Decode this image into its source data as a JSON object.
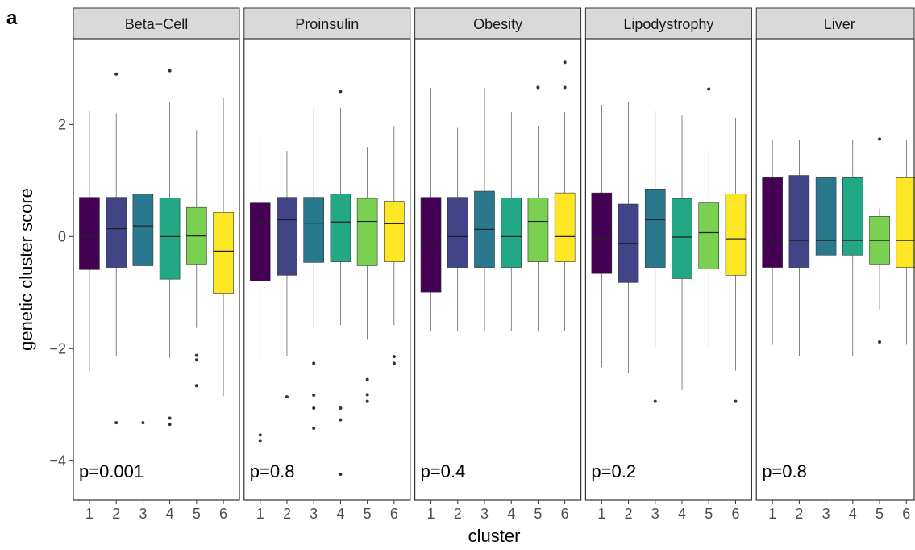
{
  "panel_label": "a",
  "xlabel": "cluster",
  "ylabel": "genetic cluster score",
  "chart_data": [
    {
      "type": "box",
      "title": "Beta−Cell",
      "annotation": "p=0.001",
      "categories": [
        "1",
        "2",
        "3",
        "4",
        "5",
        "6"
      ],
      "colors": [
        "#440154",
        "#414487",
        "#2a788e",
        "#22a884",
        "#7ad151",
        "#fde725"
      ],
      "ylim": [
        -4.7,
        3.53
      ],
      "yticks": [
        {
          "value": -4,
          "label": "−4"
        },
        {
          "value": -2,
          "label": "−2"
        },
        0,
        2
      ],
      "boxes": [
        {
          "min": -2.42,
          "q1": -0.59,
          "median": 0,
          "q3": 0.7,
          "max": 2.24,
          "outliers": []
        },
        {
          "min": -2.13,
          "q1": -0.55,
          "median": 0.14,
          "q3": 0.7,
          "max": 2.2,
          "outliers": [
            2.9,
            -3.32
          ]
        },
        {
          "min": -2.22,
          "q1": -0.52,
          "median": 0.19,
          "q3": 0.76,
          "max": 2.62,
          "outliers": [
            -3.32
          ]
        },
        {
          "min": -2.16,
          "q1": -0.76,
          "median": 0,
          "q3": 0.69,
          "max": 2.39,
          "outliers": [
            2.96,
            -3.24,
            -3.35
          ]
        },
        {
          "min": -1.63,
          "q1": -0.49,
          "median": 0.01,
          "q3": 0.52,
          "max": 1.9,
          "outliers": [
            -2.12,
            -2.2,
            -2.66
          ]
        },
        {
          "min": -2.85,
          "q1": -1.01,
          "median": -0.26,
          "q3": 0.43,
          "max": 2.47,
          "outliers": []
        }
      ]
    },
    {
      "type": "box",
      "title": "Proinsulin",
      "annotation": "p=0.8",
      "categories": [
        "1",
        "2",
        "3",
        "4",
        "5",
        "6"
      ],
      "colors": [
        "#440154",
        "#414487",
        "#2a788e",
        "#22a884",
        "#7ad151",
        "#fde725"
      ],
      "ylim": [
        -4.7,
        3.53
      ],
      "boxes": [
        {
          "min": -2.13,
          "q1": -0.79,
          "median": 0.23,
          "q3": 0.6,
          "max": 1.73,
          "outliers": [
            -3.54,
            -3.64
          ]
        },
        {
          "min": -2.13,
          "q1": -0.69,
          "median": 0.3,
          "q3": 0.7,
          "max": 1.53,
          "outliers": [
            -2.86
          ]
        },
        {
          "min": -1.63,
          "q1": -0.46,
          "median": 0.24,
          "q3": 0.7,
          "max": 2.29,
          "outliers": [
            -2.26,
            -2.83,
            -3.06,
            -3.42
          ]
        },
        {
          "min": -1.58,
          "q1": -0.45,
          "median": 0.26,
          "q3": 0.76,
          "max": 2.29,
          "outliers": [
            2.59,
            -3.06,
            -3.27,
            -4.24
          ]
        },
        {
          "min": -1.83,
          "q1": -0.52,
          "median": 0.27,
          "q3": 0.68,
          "max": 1.6,
          "outliers": [
            -2.55,
            -2.82,
            -2.94
          ]
        },
        {
          "min": -1.58,
          "q1": -0.45,
          "median": 0.23,
          "q3": 0.63,
          "max": 1.97,
          "outliers": [
            -2.14,
            -2.26
          ]
        }
      ]
    },
    {
      "type": "box",
      "title": "Obesity",
      "annotation": "p=0.4",
      "categories": [
        "1",
        "2",
        "3",
        "4",
        "5",
        "6"
      ],
      "colors": [
        "#440154",
        "#414487",
        "#2a788e",
        "#22a884",
        "#7ad151",
        "#fde725"
      ],
      "ylim": [
        -4.7,
        3.53
      ],
      "boxes": [
        {
          "min": -1.68,
          "q1": -0.99,
          "median": -0.12,
          "q3": 0.7,
          "max": 2.65,
          "outliers": []
        },
        {
          "min": -1.68,
          "q1": -0.55,
          "median": 0,
          "q3": 0.7,
          "max": 1.94,
          "outliers": []
        },
        {
          "min": -1.68,
          "q1": -0.55,
          "median": 0.13,
          "q3": 0.81,
          "max": 2.65,
          "outliers": []
        },
        {
          "min": -1.68,
          "q1": -0.55,
          "median": 0,
          "q3": 0.69,
          "max": 2.22,
          "outliers": []
        },
        {
          "min": -1.68,
          "q1": -0.45,
          "median": 0.27,
          "q3": 0.69,
          "max": 1.97,
          "outliers": [
            2.66
          ]
        },
        {
          "min": -1.68,
          "q1": -0.45,
          "median": 0,
          "q3": 0.78,
          "max": 2.22,
          "outliers": [
            3.11,
            2.66
          ]
        }
      ]
    },
    {
      "type": "box",
      "title": "Lipodystrophy",
      "annotation": "p=0.2",
      "categories": [
        "1",
        "2",
        "3",
        "4",
        "5",
        "6"
      ],
      "colors": [
        "#440154",
        "#414487",
        "#2a788e",
        "#22a884",
        "#7ad151",
        "#fde725"
      ],
      "ylim": [
        -4.7,
        3.53
      ],
      "boxes": [
        {
          "min": -2.33,
          "q1": -0.66,
          "median": -0.04,
          "q3": 0.78,
          "max": 2.35,
          "outliers": []
        },
        {
          "min": -2.43,
          "q1": -0.82,
          "median": -0.12,
          "q3": 0.58,
          "max": 2.4,
          "outliers": []
        },
        {
          "min": -1.99,
          "q1": -0.55,
          "median": 0.3,
          "q3": 0.85,
          "max": 2.24,
          "outliers": [
            -2.94
          ]
        },
        {
          "min": -2.73,
          "q1": -0.75,
          "median": -0.01,
          "q3": 0.68,
          "max": 2.16,
          "outliers": []
        },
        {
          "min": -2.01,
          "q1": -0.58,
          "median": 0.07,
          "q3": 0.6,
          "max": 1.54,
          "outliers": [
            2.63
          ]
        },
        {
          "min": -2.39,
          "q1": -0.69,
          "median": -0.04,
          "q3": 0.76,
          "max": 2.12,
          "outliers": [
            -2.94
          ]
        }
      ]
    },
    {
      "type": "box",
      "title": "Liver",
      "annotation": "p=0.8",
      "categories": [
        "1",
        "2",
        "3",
        "4",
        "5",
        "6"
      ],
      "colors": [
        "#440154",
        "#414487",
        "#2a788e",
        "#22a884",
        "#7ad151",
        "#fde725"
      ],
      "ylim": [
        -4.7,
        3.53
      ],
      "boxes": [
        {
          "min": -1.93,
          "q1": -0.55,
          "median": -0.07,
          "q3": 1.05,
          "max": 1.73,
          "outliers": []
        },
        {
          "min": -2.13,
          "q1": -0.55,
          "median": -0.07,
          "q3": 1.09,
          "max": 1.73,
          "outliers": []
        },
        {
          "min": -1.93,
          "q1": -0.33,
          "median": -0.07,
          "q3": 1.05,
          "max": 1.53,
          "outliers": []
        },
        {
          "min": -2.13,
          "q1": -0.33,
          "median": -0.07,
          "q3": 1.05,
          "max": 1.73,
          "outliers": []
        },
        {
          "min": -1.32,
          "q1": -0.49,
          "median": -0.07,
          "q3": 0.36,
          "max": 0.5,
          "outliers": [
            1.74,
            -1.88
          ]
        },
        {
          "min": -1.93,
          "q1": -0.55,
          "median": -0.07,
          "q3": 1.05,
          "max": 1.73,
          "outliers": []
        }
      ]
    }
  ]
}
